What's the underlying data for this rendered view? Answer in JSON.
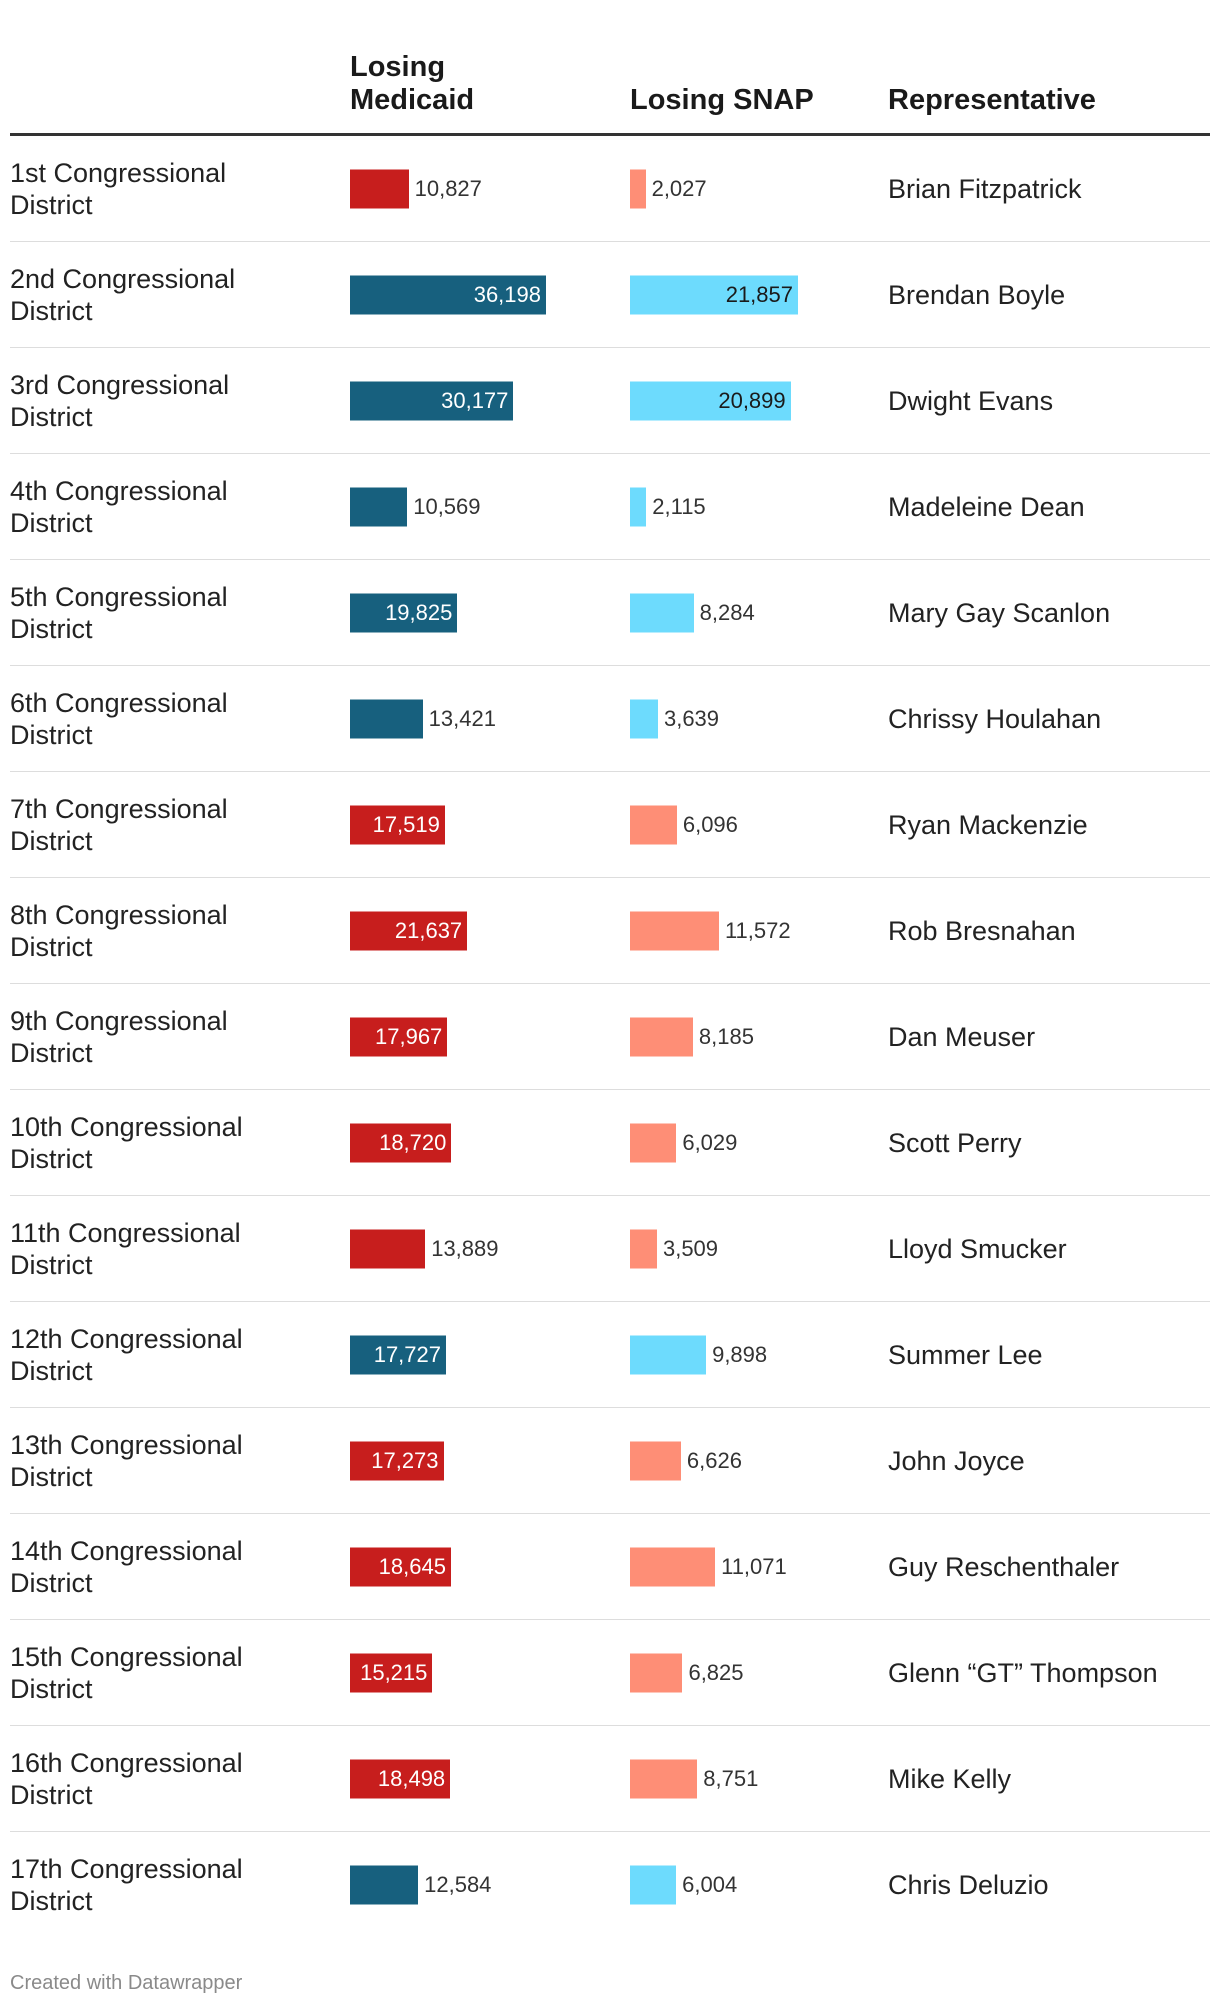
{
  "colors": {
    "medicaid_dem": "#17607e",
    "medicaid_rep": "#c71e1d",
    "snap_dem": "#6ddbfd",
    "snap_rep": "#fe8e76"
  },
  "chart_data": {
    "type": "table",
    "columns": [
      "",
      "Losing Medicaid",
      "Losing SNAP",
      "Representative"
    ],
    "medicaid_max": 36198,
    "snap_max": 21857,
    "rows": [
      {
        "district": "1st Congressional District",
        "medicaid": 10827,
        "medicaid_label": "10,827",
        "snap": 2027,
        "snap_label": "2,027",
        "representative": "Brian Fitzpatrick",
        "party": "R"
      },
      {
        "district": "2nd Congressional District",
        "medicaid": 36198,
        "medicaid_label": "36,198",
        "snap": 21857,
        "snap_label": "21,857",
        "representative": "Brendan Boyle",
        "party": "D"
      },
      {
        "district": "3rd Congressional District",
        "medicaid": 30177,
        "medicaid_label": "30,177",
        "snap": 20899,
        "snap_label": "20,899",
        "representative": "Dwight Evans",
        "party": "D"
      },
      {
        "district": "4th Congressional District",
        "medicaid": 10569,
        "medicaid_label": "10,569",
        "snap": 2115,
        "snap_label": "2,115",
        "representative": "Madeleine Dean",
        "party": "D"
      },
      {
        "district": "5th Congressional District",
        "medicaid": 19825,
        "medicaid_label": "19,825",
        "snap": 8284,
        "snap_label": "8,284",
        "representative": "Mary Gay Scanlon",
        "party": "D"
      },
      {
        "district": "6th Congressional District",
        "medicaid": 13421,
        "medicaid_label": "13,421",
        "snap": 3639,
        "snap_label": "3,639",
        "representative": "Chrissy Houlahan",
        "party": "D"
      },
      {
        "district": "7th Congressional District",
        "medicaid": 17519,
        "medicaid_label": "17,519",
        "snap": 6096,
        "snap_label": "6,096",
        "representative": "Ryan Mackenzie",
        "party": "R"
      },
      {
        "district": "8th Congressional District",
        "medicaid": 21637,
        "medicaid_label": "21,637",
        "snap": 11572,
        "snap_label": "11,572",
        "representative": "Rob Bresnahan",
        "party": "R"
      },
      {
        "district": "9th Congressional District",
        "medicaid": 17967,
        "medicaid_label": "17,967",
        "snap": 8185,
        "snap_label": "8,185",
        "representative": "Dan Meuser",
        "party": "R"
      },
      {
        "district": "10th Congressional District",
        "medicaid": 18720,
        "medicaid_label": "18,720",
        "snap": 6029,
        "snap_label": "6,029",
        "representative": "Scott Perry",
        "party": "R"
      },
      {
        "district": "11th Congressional District",
        "medicaid": 13889,
        "medicaid_label": "13,889",
        "snap": 3509,
        "snap_label": "3,509",
        "representative": "Lloyd Smucker",
        "party": "R"
      },
      {
        "district": "12th Congressional District",
        "medicaid": 17727,
        "medicaid_label": "17,727",
        "snap": 9898,
        "snap_label": "9,898",
        "representative": "Summer Lee",
        "party": "D"
      },
      {
        "district": "13th Congressional District",
        "medicaid": 17273,
        "medicaid_label": "17,273",
        "snap": 6626,
        "snap_label": "6,626",
        "representative": "John Joyce",
        "party": "R"
      },
      {
        "district": "14th Congressional District",
        "medicaid": 18645,
        "medicaid_label": "18,645",
        "snap": 11071,
        "snap_label": "11,071",
        "representative": "Guy Reschenthaler",
        "party": "R"
      },
      {
        "district": "15th Congressional District",
        "medicaid": 15215,
        "medicaid_label": "15,215",
        "snap": 6825,
        "snap_label": "6,825",
        "representative": "Glenn “GT” Thompson",
        "party": "R"
      },
      {
        "district": "16th Congressional District",
        "medicaid": 18498,
        "medicaid_label": "18,498",
        "snap": 8751,
        "snap_label": "8,751",
        "representative": "Mike Kelly",
        "party": "R"
      },
      {
        "district": "17th Congressional District",
        "medicaid": 12584,
        "medicaid_label": "12,584",
        "snap": 6004,
        "snap_label": "6,004",
        "representative": "Chris Deluzio",
        "party": "D"
      }
    ]
  },
  "header": {
    "medicaid": "Losing Medicaid",
    "snap": "Losing SNAP",
    "representative": "Representative"
  },
  "footer": {
    "credit": "Created with Datawrapper"
  }
}
